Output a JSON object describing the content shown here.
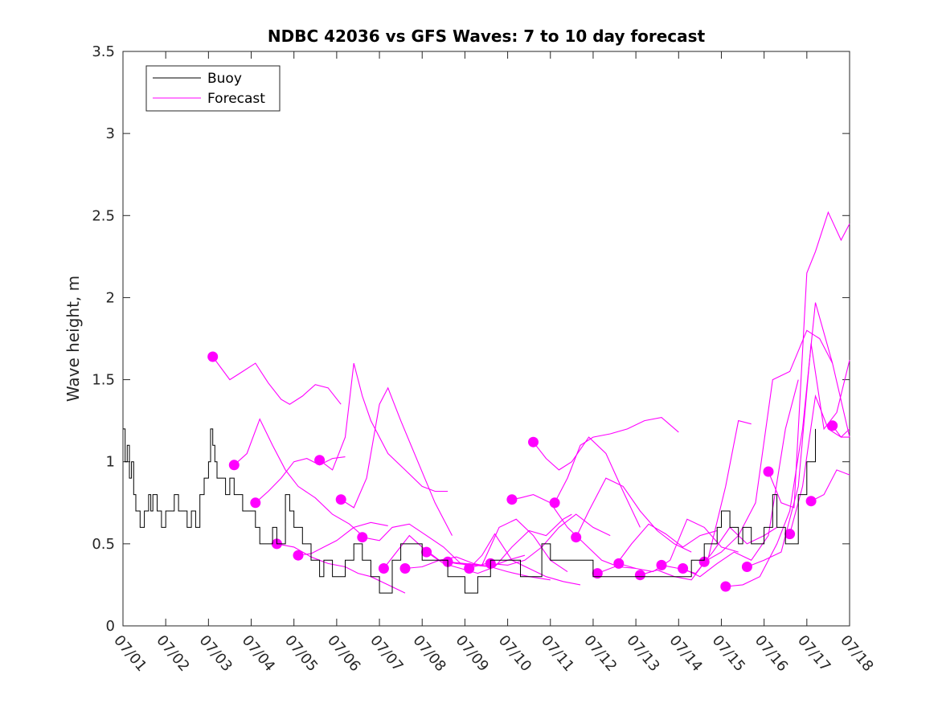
{
  "chart_data": {
    "type": "line",
    "title": "NDBC 42036 vs GFS Waves: 7 to 10 day forecast",
    "xlabel": "",
    "ylabel": "Wave height, m",
    "x_unit": "day of July",
    "xlim": [
      1,
      18
    ],
    "ylim": [
      0,
      3.5
    ],
    "yticks": [
      "0",
      "0.5",
      "1",
      "1.5",
      "2",
      "2.5",
      "3",
      "3.5"
    ],
    "xticks": [
      "07/01",
      "07/02",
      "07/03",
      "07/04",
      "07/05",
      "07/06",
      "07/07",
      "07/08",
      "07/09",
      "07/10",
      "07/11",
      "07/12",
      "07/13",
      "07/14",
      "07/15",
      "07/16",
      "07/17",
      "07/18"
    ],
    "grid": false,
    "legend": {
      "placement": "top-left",
      "entries": [
        {
          "label": "Buoy",
          "color": "#000000"
        },
        {
          "label": "Forecast",
          "color": "#ff00ff"
        }
      ]
    },
    "colors": {
      "buoy": "#000000",
      "forecast": "#ff00ff"
    },
    "buoy": {
      "x": [
        1.0,
        1.05,
        1.1,
        1.15,
        1.2,
        1.25,
        1.3,
        1.35,
        1.4,
        1.5,
        1.6,
        1.65,
        1.7,
        1.8,
        1.9,
        2.0,
        2.1,
        2.2,
        2.3,
        2.4,
        2.5,
        2.6,
        2.7,
        2.8,
        2.9,
        3.0,
        3.05,
        3.1,
        3.15,
        3.2,
        3.3,
        3.4,
        3.5,
        3.6,
        3.7,
        3.8,
        3.9,
        4.0,
        4.1,
        4.2,
        4.3,
        4.4,
        4.5,
        4.6,
        4.7,
        4.8,
        4.9,
        5.0,
        5.2,
        5.4,
        5.6,
        5.7,
        5.8,
        5.9,
        6.0,
        6.2,
        6.3,
        6.4,
        6.6,
        6.8,
        7.0,
        7.1,
        7.3,
        7.5,
        7.8,
        8.0,
        8.3,
        8.6,
        8.9,
        9.0,
        9.3,
        9.6,
        10.0,
        10.3,
        10.6,
        10.8,
        11.0,
        11.3,
        11.6,
        12.0,
        12.3,
        12.6,
        13.0,
        13.3,
        13.6,
        14.0,
        14.3,
        14.6,
        14.9,
        15.0,
        15.2,
        15.4,
        15.5,
        15.7,
        15.9,
        16.0,
        16.2,
        16.3,
        16.5,
        16.6,
        16.8,
        17.0,
        17.2
      ],
      "values": [
        1.2,
        1.0,
        1.1,
        0.9,
        1.0,
        0.8,
        0.7,
        0.7,
        0.6,
        0.7,
        0.8,
        0.7,
        0.8,
        0.7,
        0.6,
        0.7,
        0.7,
        0.8,
        0.7,
        0.7,
        0.6,
        0.7,
        0.6,
        0.8,
        0.9,
        1.0,
        1.2,
        1.1,
        1.0,
        0.9,
        0.9,
        0.8,
        0.9,
        0.8,
        0.8,
        0.7,
        0.7,
        0.7,
        0.6,
        0.5,
        0.5,
        0.5,
        0.6,
        0.5,
        0.5,
        0.8,
        0.7,
        0.6,
        0.5,
        0.4,
        0.3,
        0.4,
        0.4,
        0.3,
        0.3,
        0.4,
        0.4,
        0.5,
        0.4,
        0.3,
        0.2,
        0.2,
        0.4,
        0.5,
        0.5,
        0.4,
        0.4,
        0.3,
        0.3,
        0.2,
        0.3,
        0.4,
        0.4,
        0.3,
        0.3,
        0.5,
        0.4,
        0.4,
        0.4,
        0.3,
        0.3,
        0.3,
        0.3,
        0.3,
        0.3,
        0.3,
        0.4,
        0.5,
        0.6,
        0.7,
        0.6,
        0.5,
        0.6,
        0.5,
        0.5,
        0.6,
        0.8,
        0.6,
        0.5,
        0.5,
        0.8,
        1.0,
        1.2
      ]
    },
    "forecast_series": [
      {
        "x": [
          3.1,
          3.5,
          3.8,
          4.1,
          4.4,
          4.7,
          4.9,
          5.2,
          5.5,
          5.8,
          6.1
        ],
        "values": [
          1.64,
          1.5,
          1.55,
          1.6,
          1.48,
          1.38,
          1.35,
          1.4,
          1.47,
          1.45,
          1.35
        ]
      },
      {
        "x": [
          3.6,
          3.9,
          4.2,
          4.5,
          4.8,
          5.1,
          5.5,
          5.9,
          6.3,
          6.6
        ],
        "values": [
          0.98,
          1.05,
          1.26,
          1.1,
          0.95,
          0.85,
          0.78,
          0.68,
          0.62,
          0.55
        ]
      },
      {
        "x": [
          4.1,
          4.4,
          4.7,
          5.0,
          5.3,
          5.6,
          5.9,
          6.2
        ],
        "values": [
          0.75,
          0.82,
          0.9,
          1.0,
          1.02,
          0.98,
          1.02,
          1.03
        ]
      },
      {
        "x": [
          4.6,
          5.0,
          5.4,
          5.8,
          6.2,
          6.5,
          6.8,
          7.2,
          7.6
        ],
        "values": [
          0.5,
          0.48,
          0.42,
          0.38,
          0.36,
          0.32,
          0.3,
          0.25,
          0.2
        ]
      },
      {
        "x": [
          5.1,
          5.4,
          5.7,
          6.0,
          6.4,
          6.8,
          7.2
        ],
        "values": [
          0.43,
          0.44,
          0.48,
          0.52,
          0.6,
          0.63,
          0.61
        ]
      },
      {
        "x": [
          5.6,
          5.9,
          6.2,
          6.4,
          6.6,
          6.8,
          7.2,
          7.6,
          8.0,
          8.3,
          8.6
        ],
        "values": [
          1.01,
          0.95,
          1.15,
          1.6,
          1.4,
          1.25,
          1.05,
          0.95,
          0.85,
          0.82,
          0.82
        ]
      },
      {
        "x": [
          6.1,
          6.4,
          6.7,
          7.0,
          7.2,
          7.5,
          7.9,
          8.3,
          8.7
        ],
        "values": [
          0.77,
          0.72,
          0.9,
          1.35,
          1.45,
          1.25,
          1.0,
          0.75,
          0.55
        ]
      },
      {
        "x": [
          6.6,
          7.0,
          7.3,
          7.7,
          8.1,
          8.5,
          8.9,
          9.2,
          9.5
        ],
        "values": [
          0.54,
          0.52,
          0.6,
          0.62,
          0.55,
          0.48,
          0.38,
          0.36,
          0.38
        ]
      },
      {
        "x": [
          7.1,
          7.4,
          7.7,
          8.0,
          8.4,
          8.8,
          9.2,
          9.6,
          10.0,
          10.4
        ],
        "values": [
          0.35,
          0.45,
          0.55,
          0.48,
          0.4,
          0.38,
          0.37,
          0.36,
          0.4,
          0.43
        ]
      },
      {
        "x": [
          7.6,
          8.0,
          8.4,
          8.8,
          9.2,
          9.6,
          10.0,
          10.5,
          11.0
        ],
        "values": [
          0.35,
          0.36,
          0.4,
          0.42,
          0.38,
          0.36,
          0.33,
          0.3,
          0.28
        ]
      },
      {
        "x": [
          8.1,
          8.5,
          8.9,
          9.3,
          9.7,
          10.1,
          10.5,
          10.9,
          11.3,
          11.5
        ],
        "values": [
          0.45,
          0.38,
          0.35,
          0.32,
          0.36,
          0.48,
          0.58,
          0.55,
          0.65,
          0.68
        ]
      },
      {
        "x": [
          8.6,
          9.0,
          9.4,
          9.8,
          10.2,
          10.6,
          11.0,
          11.4
        ],
        "values": [
          0.39,
          0.38,
          0.37,
          0.6,
          0.65,
          0.55,
          0.4,
          0.33
        ]
      },
      {
        "x": [
          9.1,
          9.4,
          9.7,
          10.1,
          10.5,
          10.9,
          11.3,
          11.7
        ],
        "values": [
          0.35,
          0.43,
          0.56,
          0.4,
          0.35,
          0.3,
          0.27,
          0.25
        ]
      },
      {
        "x": [
          9.6,
          10.0,
          10.4,
          10.8,
          11.2,
          11.6,
          12.0,
          12.4
        ],
        "values": [
          0.38,
          0.37,
          0.4,
          0.48,
          0.6,
          0.68,
          0.6,
          0.55
        ]
      },
      {
        "x": [
          10.1,
          10.3,
          10.6,
          11.0,
          11.4,
          11.8,
          12.2,
          12.6,
          13.0
        ],
        "values": [
          0.77,
          0.78,
          0.8,
          0.75,
          0.6,
          0.5,
          0.4,
          0.36,
          0.35
        ]
      },
      {
        "x": [
          10.6,
          10.9,
          11.2,
          11.5,
          11.9,
          12.3,
          12.7,
          13.1
        ],
        "values": [
          1.12,
          1.02,
          0.95,
          1.0,
          1.15,
          1.05,
          0.82,
          0.6
        ]
      },
      {
        "x": [
          11.1,
          11.4,
          11.7,
          12.0,
          12.4,
          12.8,
          13.2,
          13.6,
          14.0
        ],
        "values": [
          0.75,
          0.9,
          1.1,
          1.15,
          1.17,
          1.2,
          1.25,
          1.27,
          1.18
        ]
      },
      {
        "x": [
          11.6,
          11.9,
          12.3,
          12.7,
          13.1,
          13.5,
          13.9,
          14.3
        ],
        "values": [
          0.54,
          0.7,
          0.9,
          0.85,
          0.7,
          0.58,
          0.5,
          0.45
        ]
      },
      {
        "x": [
          12.1,
          12.5,
          12.9,
          13.3,
          13.7,
          14.1,
          14.5,
          14.9
        ],
        "values": [
          0.32,
          0.36,
          0.5,
          0.62,
          0.56,
          0.48,
          0.55,
          0.58
        ]
      },
      {
        "x": [
          12.6,
          13.0,
          13.4,
          13.8,
          14.2,
          14.6,
          15.0,
          15.4
        ],
        "values": [
          0.38,
          0.35,
          0.33,
          0.4,
          0.65,
          0.6,
          0.48,
          0.45
        ]
      },
      {
        "x": [
          13.1,
          13.5,
          13.9,
          14.3,
          14.7,
          15.1,
          15.4,
          15.7
        ],
        "values": [
          0.31,
          0.34,
          0.3,
          0.28,
          0.42,
          0.85,
          1.25,
          1.23
        ]
      },
      {
        "x": [
          13.6,
          14.0,
          14.4,
          14.8,
          15.2,
          15.6,
          16.0,
          16.3
        ],
        "values": [
          0.37,
          0.35,
          0.32,
          0.45,
          0.6,
          0.5,
          0.55,
          0.6
        ]
      },
      {
        "x": [
          14.1,
          14.5,
          14.9,
          15.3,
          15.7,
          16.1,
          16.5,
          16.8
        ],
        "values": [
          0.35,
          0.3,
          0.38,
          0.45,
          0.4,
          0.55,
          1.2,
          1.5
        ]
      },
      {
        "x": [
          14.6,
          15.0,
          15.4,
          15.8,
          16.2,
          16.6,
          17.0,
          17.3,
          17.6
        ],
        "values": [
          0.39,
          0.45,
          0.55,
          0.75,
          1.5,
          1.55,
          1.8,
          1.75,
          1.6
        ]
      },
      {
        "x": [
          15.1,
          15.5,
          15.9,
          16.3,
          16.6,
          16.9,
          17.2,
          17.6,
          18.0
        ],
        "values": [
          0.24,
          0.25,
          0.3,
          0.5,
          0.7,
          1.2,
          1.97,
          1.6,
          1.15
        ]
      },
      {
        "x": [
          15.6,
          16.0,
          16.4,
          16.8,
          17.1,
          17.4,
          17.7,
          18.0
        ],
        "values": [
          0.36,
          0.4,
          0.45,
          0.85,
          1.72,
          1.2,
          1.3,
          1.62
        ]
      },
      {
        "x": [
          16.1,
          16.4,
          16.7,
          17.0,
          17.2,
          17.5,
          17.8,
          18.0
        ],
        "values": [
          0.94,
          0.75,
          0.72,
          2.15,
          2.28,
          2.52,
          2.35,
          2.45
        ]
      },
      {
        "x": [
          16.6,
          16.9,
          17.2,
          17.5,
          17.8,
          18.0
        ],
        "values": [
          0.56,
          0.85,
          1.4,
          1.2,
          1.15,
          1.15
        ]
      },
      {
        "x": [
          17.1,
          17.4,
          17.7,
          18.0
        ],
        "values": [
          0.76,
          0.8,
          0.95,
          0.92
        ]
      },
      {
        "x": [
          17.6,
          17.8,
          18.0
        ],
        "values": [
          1.22,
          1.15,
          1.2
        ]
      }
    ]
  }
}
